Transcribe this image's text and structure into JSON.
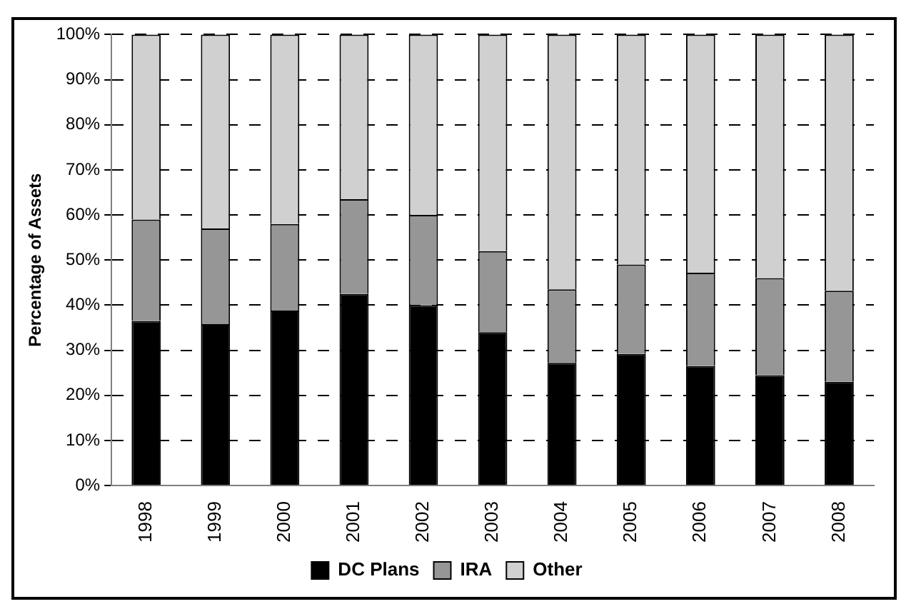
{
  "chart_data": {
    "type": "bar",
    "stacked": true,
    "ylabel": "Percentage of Assets",
    "categories": [
      "1998",
      "1999",
      "2000",
      "2001",
      "2002",
      "2003",
      "2004",
      "2005",
      "2006",
      "2007",
      "2008"
    ],
    "series": [
      {
        "name": "DC Plans",
        "color": "#000000",
        "values": [
          36.5,
          35.8,
          38.8,
          42.5,
          40,
          34,
          27.2,
          29.2,
          26.5,
          24.5,
          23
        ]
      },
      {
        "name": "IRA",
        "color": "#969696",
        "values": [
          22.5,
          21.2,
          19.2,
          21,
          20,
          18,
          16.3,
          19.8,
          20.7,
          21.5,
          20.2
        ]
      },
      {
        "name": "Other",
        "color": "#d0d0d0",
        "values": [
          41,
          43,
          42,
          36.5,
          40,
          48,
          56.5,
          51,
          52.8,
          54,
          56.8
        ]
      }
    ],
    "ylim": [
      0,
      100
    ],
    "yticks": [
      {
        "value": 0,
        "label": "0%"
      },
      {
        "value": 10,
        "label": "10%"
      },
      {
        "value": 20,
        "label": "20%"
      },
      {
        "value": 30,
        "label": "30%"
      },
      {
        "value": 40,
        "label": "40%"
      },
      {
        "value": 50,
        "label": "50%"
      },
      {
        "value": 60,
        "label": "60%"
      },
      {
        "value": 70,
        "label": "70%"
      },
      {
        "value": 80,
        "label": "80%"
      },
      {
        "value": 90,
        "label": "90%"
      },
      {
        "value": 100,
        "label": "100%"
      }
    ],
    "grid": "y",
    "legend": "bottom"
  }
}
